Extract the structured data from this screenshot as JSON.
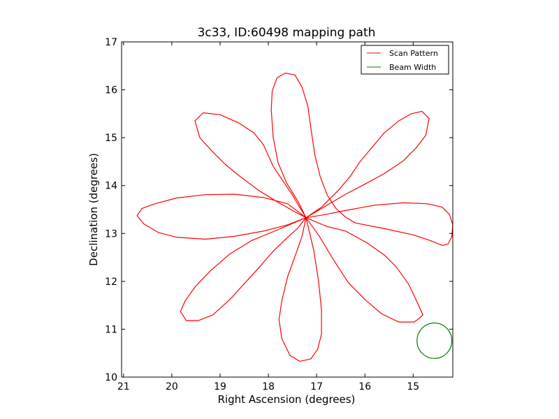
{
  "chart_data": {
    "type": "line",
    "title": "3c33, ID:60498 mapping path",
    "xlabel": "Right Ascension (degrees)",
    "ylabel": "Declination (degrees)",
    "xlim": [
      21.04,
      14.18
    ],
    "ylim": [
      10,
      17
    ],
    "x_inverted": true,
    "xticks": [
      21,
      20,
      19,
      18,
      17,
      16,
      15
    ],
    "yticks": [
      10,
      11,
      12,
      13,
      14,
      15,
      16,
      17
    ],
    "grid": false,
    "legend_position": "top-right",
    "series": [
      {
        "name": "Scan Pattern",
        "color": "#ff0000",
        "style": "line",
        "closed": false,
        "points": [
          [
            17.22,
            13.33
          ],
          [
            17.38,
            13.66
          ],
          [
            17.62,
            14.05
          ],
          [
            17.8,
            14.48
          ],
          [
            17.9,
            15.0
          ],
          [
            17.94,
            15.58
          ],
          [
            17.92,
            15.98
          ],
          [
            17.82,
            16.25
          ],
          [
            17.65,
            16.35
          ],
          [
            17.45,
            16.31
          ],
          [
            17.3,
            16.05
          ],
          [
            17.18,
            15.65
          ],
          [
            17.12,
            15.2
          ],
          [
            17.04,
            14.65
          ],
          [
            16.93,
            14.2
          ],
          [
            16.78,
            13.8
          ],
          [
            16.6,
            13.52
          ],
          [
            16.4,
            13.34
          ],
          [
            16.2,
            13.22
          ],
          [
            15.6,
            13.1
          ],
          [
            15.0,
            12.97
          ],
          [
            14.64,
            12.85
          ],
          [
            14.4,
            12.75
          ],
          [
            14.28,
            12.78
          ],
          [
            14.2,
            12.93
          ],
          [
            14.18,
            13.18
          ],
          [
            14.25,
            13.4
          ],
          [
            14.4,
            13.55
          ],
          [
            14.7,
            13.62
          ],
          [
            15.2,
            13.64
          ],
          [
            15.8,
            13.59
          ],
          [
            16.4,
            13.48
          ],
          [
            16.9,
            13.38
          ],
          [
            17.22,
            13.33
          ],
          [
            16.9,
            13.55
          ],
          [
            16.55,
            13.9
          ],
          [
            16.3,
            14.2
          ],
          [
            16.1,
            14.5
          ],
          [
            15.85,
            14.8
          ],
          [
            15.6,
            15.1
          ],
          [
            15.3,
            15.35
          ],
          [
            15.04,
            15.5
          ],
          [
            14.82,
            15.55
          ],
          [
            14.67,
            15.4
          ],
          [
            14.74,
            15.05
          ],
          [
            14.93,
            14.8
          ],
          [
            15.2,
            14.52
          ],
          [
            15.6,
            14.25
          ],
          [
            16.0,
            14.03
          ],
          [
            16.4,
            13.82
          ],
          [
            16.8,
            13.58
          ],
          [
            17.22,
            13.33
          ],
          [
            17.5,
            13.8
          ],
          [
            17.7,
            14.1
          ],
          [
            17.9,
            14.4
          ],
          [
            18.1,
            14.85
          ],
          [
            18.3,
            15.1
          ],
          [
            18.6,
            15.3
          ],
          [
            19.0,
            15.48
          ],
          [
            19.35,
            15.52
          ],
          [
            19.52,
            15.35
          ],
          [
            19.42,
            15.0
          ],
          [
            19.15,
            14.7
          ],
          [
            18.9,
            14.45
          ],
          [
            18.6,
            14.2
          ],
          [
            18.2,
            13.9
          ],
          [
            17.8,
            13.65
          ],
          [
            17.5,
            13.48
          ],
          [
            17.22,
            13.33
          ],
          [
            17.6,
            13.62
          ],
          [
            18.1,
            13.75
          ],
          [
            18.7,
            13.82
          ],
          [
            19.3,
            13.81
          ],
          [
            19.9,
            13.74
          ],
          [
            20.35,
            13.62
          ],
          [
            20.62,
            13.52
          ],
          [
            20.72,
            13.37
          ],
          [
            20.58,
            13.2
          ],
          [
            20.28,
            13.02
          ],
          [
            19.9,
            12.92
          ],
          [
            19.3,
            12.88
          ],
          [
            18.7,
            12.94
          ],
          [
            18.1,
            13.05
          ],
          [
            17.6,
            13.18
          ],
          [
            17.22,
            13.33
          ],
          [
            17.4,
            13.1
          ],
          [
            17.62,
            12.9
          ],
          [
            17.9,
            12.63
          ],
          [
            18.2,
            12.28
          ],
          [
            18.5,
            11.95
          ],
          [
            18.8,
            11.62
          ],
          [
            19.15,
            11.3
          ],
          [
            19.45,
            11.18
          ],
          [
            19.7,
            11.18
          ],
          [
            19.82,
            11.37
          ],
          [
            19.72,
            11.6
          ],
          [
            19.52,
            11.88
          ],
          [
            19.2,
            12.22
          ],
          [
            18.8,
            12.57
          ],
          [
            18.35,
            12.85
          ],
          [
            17.82,
            13.07
          ],
          [
            17.22,
            13.33
          ],
          [
            17.3,
            12.95
          ],
          [
            17.42,
            12.6
          ],
          [
            17.6,
            12.1
          ],
          [
            17.72,
            11.6
          ],
          [
            17.78,
            11.2
          ],
          [
            17.72,
            10.8
          ],
          [
            17.55,
            10.45
          ],
          [
            17.35,
            10.33
          ],
          [
            17.12,
            10.38
          ],
          [
            16.98,
            10.58
          ],
          [
            16.9,
            10.9
          ],
          [
            16.9,
            11.4
          ],
          [
            16.96,
            12.0
          ],
          [
            17.06,
            12.65
          ],
          [
            17.22,
            13.33
          ],
          [
            16.95,
            12.95
          ],
          [
            16.65,
            12.45
          ],
          [
            16.35,
            11.98
          ],
          [
            16.0,
            11.62
          ],
          [
            15.65,
            11.32
          ],
          [
            15.3,
            11.15
          ],
          [
            14.98,
            11.15
          ],
          [
            14.88,
            11.22
          ],
          [
            14.8,
            11.3
          ],
          [
            14.98,
            11.7
          ],
          [
            15.1,
            11.95
          ],
          [
            15.35,
            12.3
          ],
          [
            15.6,
            12.55
          ],
          [
            15.95,
            12.8
          ],
          [
            16.4,
            13.05
          ],
          [
            16.8,
            13.15
          ],
          [
            17.22,
            13.33
          ]
        ]
      },
      {
        "name": "Beam Width",
        "color": "#008000",
        "style": "circle",
        "center": [
          14.56,
          10.76
        ],
        "radius_ra": 0.36,
        "radius_dec": 0.37
      }
    ]
  }
}
